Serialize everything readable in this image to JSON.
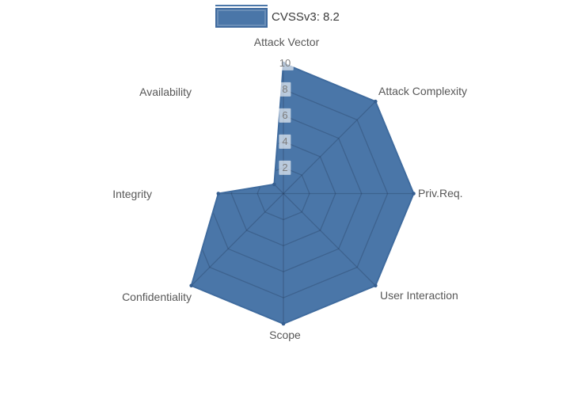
{
  "legend": {
    "label": "CVSSv3: 8.2",
    "swatch_color": "#4a76a8",
    "swatch_border": "#3f6a9e"
  },
  "chart_data": {
    "type": "radar",
    "categories": [
      "Attack Vector",
      "Attack Complexity",
      "Priv.Req.",
      "User Interaction",
      "Scope",
      "Confidentiality",
      "Integrity",
      "Availability"
    ],
    "series": [
      {
        "name": "CVSSv3: 8.2",
        "values": [
          10,
          10,
          10,
          10,
          10,
          10,
          5,
          1
        ]
      }
    ],
    "radial_ticks": [
      2,
      4,
      6,
      8,
      10
    ],
    "radial_range": [
      0,
      10
    ],
    "start_angle_deg": 90,
    "direction": "clockwise",
    "legend_position": "top",
    "grid_visible_inside_fill_only": true,
    "fill_color": "#4a76a8",
    "line_color": "#3f6b9e",
    "marker_color": "#365f91",
    "grid_color": "rgba(32,52,84,0.30)"
  }
}
